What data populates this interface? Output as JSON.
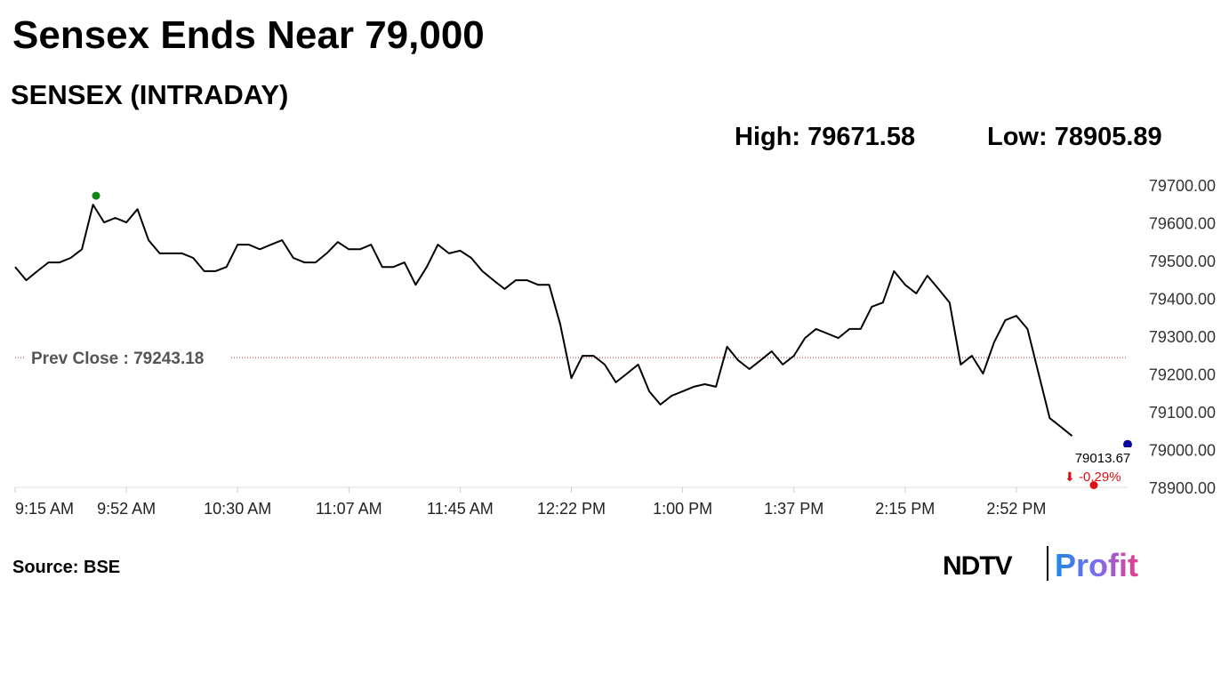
{
  "chart_data": {
    "type": "line",
    "title": "Sensex Ends Near 79,000",
    "subtitle": "SENSEX (INTRADAY)",
    "high_label": "High:",
    "high": 79671.58,
    "low_label": "Low:",
    "low": 78905.89,
    "prev_close_label": "Prev Close :",
    "prev_close": 79243.18,
    "last": 79013.67,
    "change": {
      "value": -0.29,
      "label": "-0.29%"
    },
    "source": "Source: BSE",
    "logo": [
      "NDTV",
      "Profit"
    ],
    "categories": [
      "9:15 AM",
      null,
      null,
      null,
      null,
      null,
      null,
      null,
      null,
      null,
      "9:52 AM",
      null,
      null,
      null,
      null,
      null,
      null,
      null,
      null,
      null,
      "10:30 AM",
      null,
      null,
      null,
      null,
      null,
      null,
      null,
      null,
      null,
      "11:07 AM",
      null,
      null,
      null,
      null,
      null,
      null,
      null,
      null,
      null,
      "11:45 AM",
      null,
      null,
      null,
      null,
      null,
      null,
      null,
      null,
      null,
      "12:22 PM",
      null,
      null,
      null,
      null,
      null,
      null,
      null,
      null,
      null,
      "1:00 PM",
      null,
      null,
      null,
      null,
      null,
      null,
      null,
      null,
      null,
      "1:37 PM",
      null,
      null,
      null,
      null,
      null,
      null,
      null,
      null,
      null,
      "2:15 PM",
      null,
      null,
      null,
      null,
      null,
      null,
      null,
      null,
      null,
      "2:52 PM",
      null,
      null,
      null,
      null,
      null,
      null,
      null,
      null,
      null,
      null
    ],
    "series": [
      {
        "color": "#000000",
        "values": [
          79483,
          79448,
          79472,
          79495,
          79495,
          79507,
          79530,
          79648,
          79601,
          79613,
          79601,
          79636,
          79554,
          79519,
          79519,
          79519,
          79507,
          79472,
          79472,
          79483,
          79542,
          79542,
          79530,
          79542,
          79554,
          79507,
          79495,
          79495,
          79519,
          79549,
          79530,
          79530,
          79542,
          79483,
          79483,
          79495,
          79436,
          79483,
          79542,
          79519,
          79526,
          79507,
          79472,
          79448,
          79425,
          79448,
          79448,
          79436,
          79436,
          79331,
          79189,
          79248,
          79248,
          79225,
          79178,
          79201,
          79225,
          79154,
          79119,
          79142,
          79154,
          79166,
          79173,
          79166,
          79272,
          79236,
          79213,
          79236,
          79260,
          79225,
          79248,
          79295,
          79319,
          79307,
          79295,
          79319,
          79319,
          79378,
          79389,
          79472,
          79436,
          79413,
          79460,
          79425,
          79389,
          79225,
          79248,
          79201,
          79284,
          79342,
          79354,
          79319,
          79201,
          79083,
          79060,
          79036,
          null,
          null,
          null,
          null,
          79013.67
        ]
      }
    ],
    "ylim": [
      78900,
      79700
    ],
    "yticks": [
      {
        "value": 78900,
        "label": "78900.00"
      },
      {
        "value": 79000,
        "label": "79000.00"
      },
      {
        "value": 79100,
        "label": "79100.00"
      },
      {
        "value": 79200,
        "label": "79200.00"
      },
      {
        "value": 79300,
        "label": "79300.00"
      },
      {
        "value": 79400,
        "label": "79400.00"
      },
      {
        "value": 79500,
        "label": "79500.00"
      },
      {
        "value": 79600,
        "label": "79600.00"
      },
      {
        "value": 79700,
        "label": "79700.00"
      }
    ],
    "grid": false
  }
}
